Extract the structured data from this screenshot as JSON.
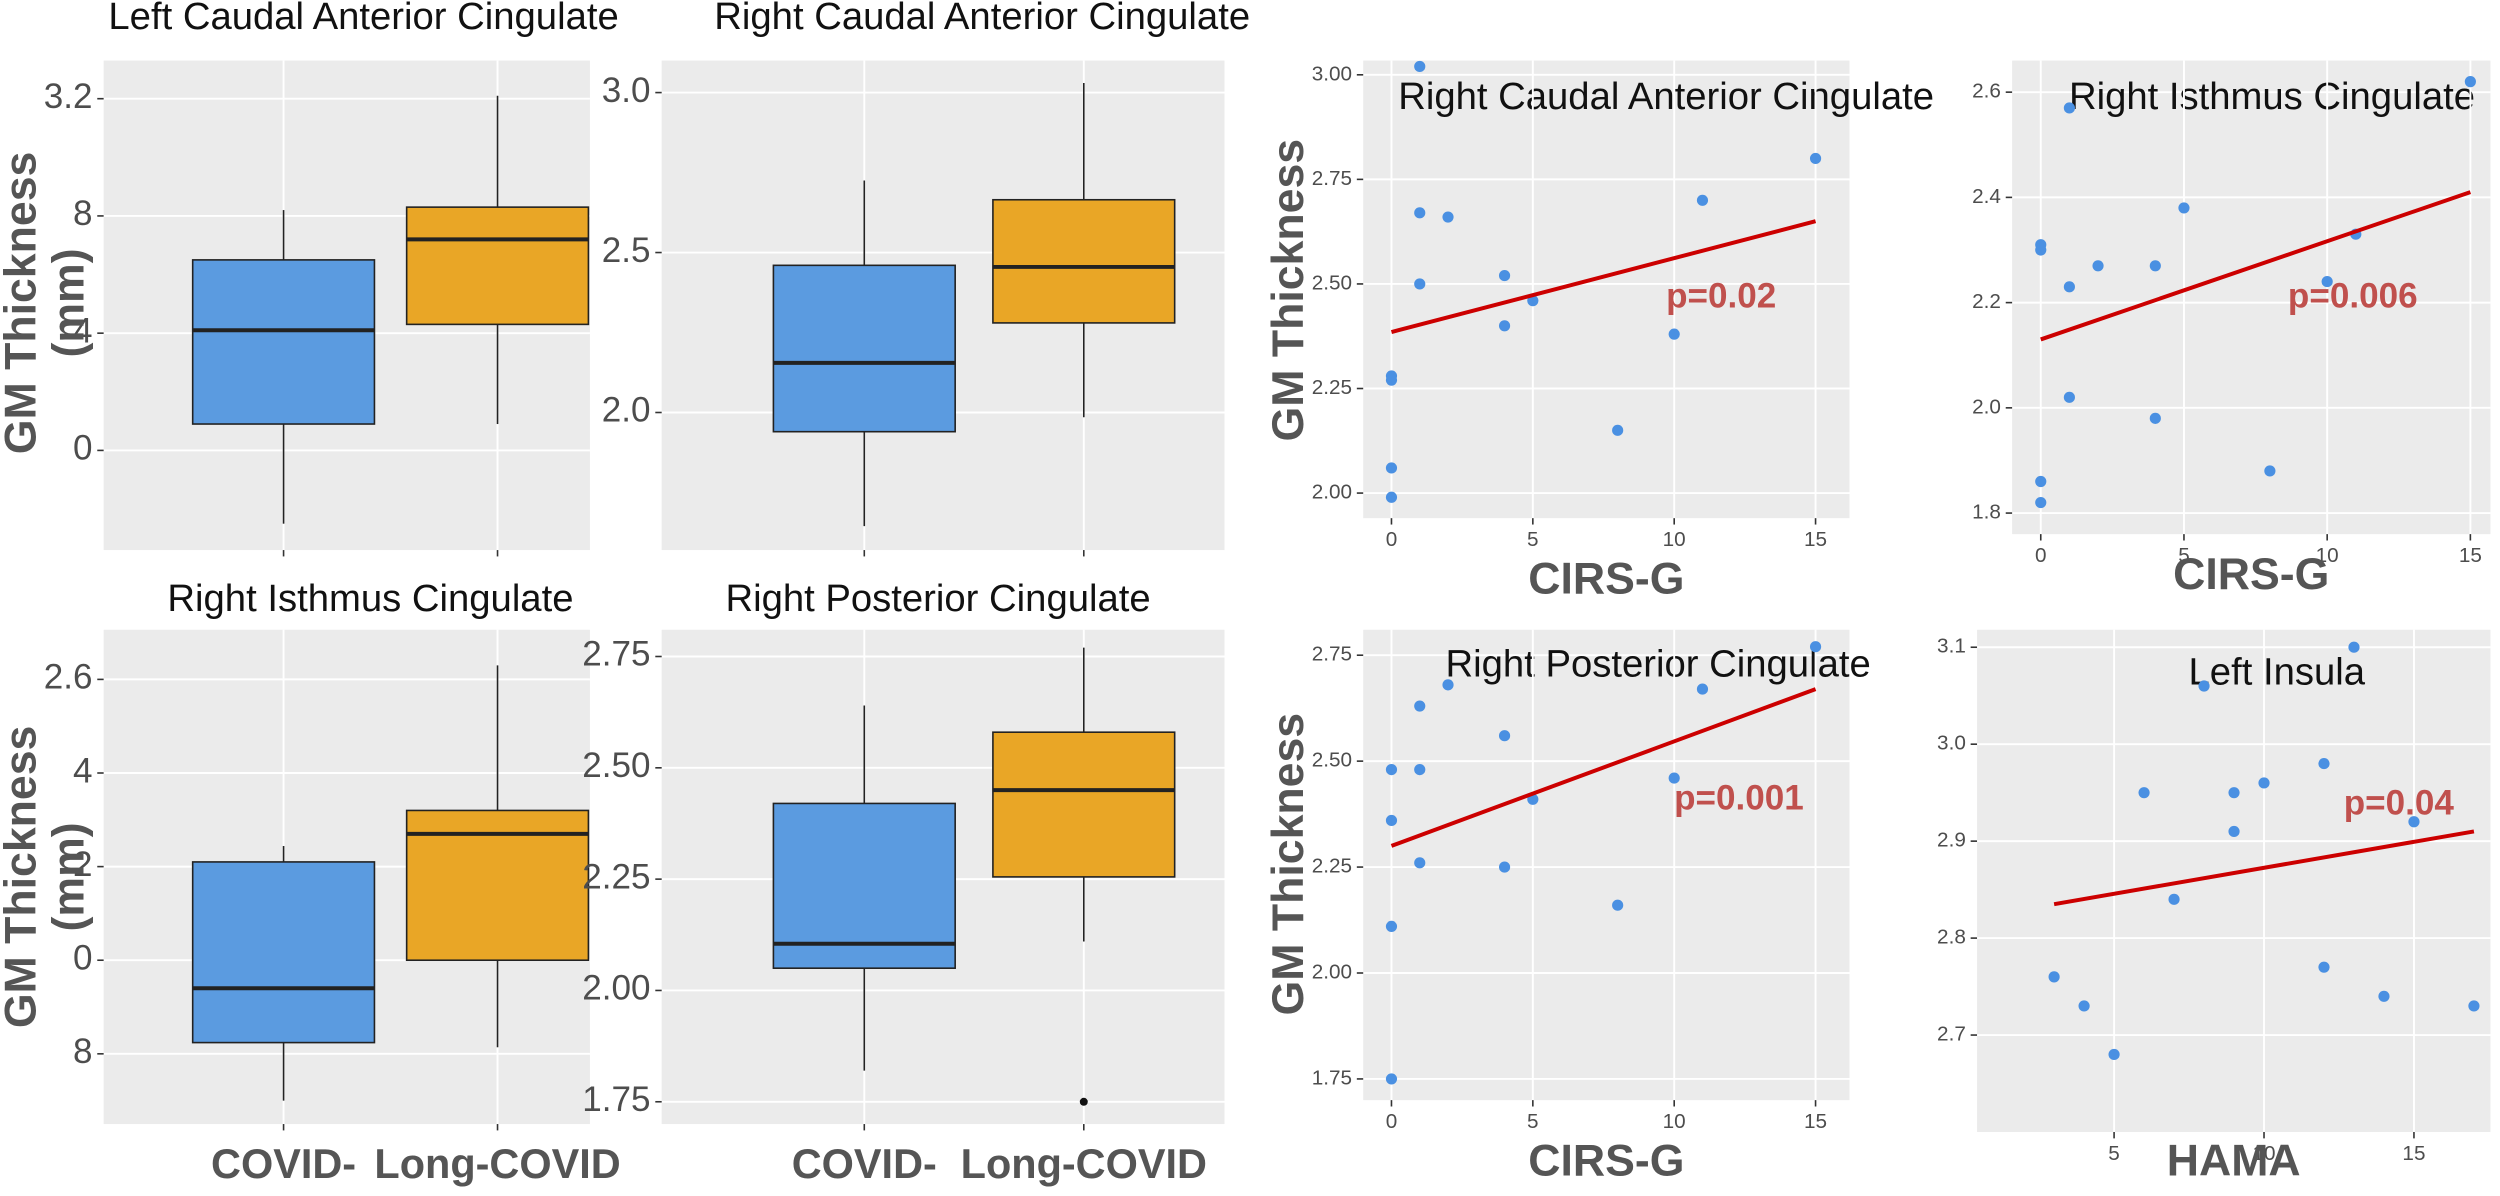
{
  "chart_data": [
    {
      "type": "box",
      "title": "Left Caudal Anterior Cingulate",
      "ylabel": [
        "GM Thickness",
        "(mm)"
      ],
      "categories": [
        null,
        null
      ],
      "colors": [
        "#5b9be0",
        "#e9a626"
      ],
      "boxes": [
        {
          "min": 1.75,
          "q1": 2.09,
          "median": 2.41,
          "q3": 2.65,
          "max": 2.82
        },
        {
          "min": 2.09,
          "q1": 2.43,
          "median": 2.72,
          "q3": 2.83,
          "max": 3.21
        }
      ],
      "outliers": [
        [],
        []
      ],
      "ylim": [
        1.66,
        3.33
      ],
      "yticks": [
        3.2,
        {
          "value": 2.8,
          "label": "8"
        },
        {
          "value": 2.4,
          "label": "4"
        },
        {
          "value": 2.0,
          "label": "0"
        }
      ]
    },
    {
      "type": "box",
      "title": "Right Caudal Anterior Cingulate",
      "categories": [
        null,
        null
      ],
      "colors": [
        "#5b9be0",
        "#e9a626"
      ],
      "boxes": [
        {
          "min": 1.645,
          "q1": 1.94,
          "median": 2.155,
          "q3": 2.46,
          "max": 2.725
        },
        {
          "min": 1.985,
          "q1": 2.28,
          "median": 2.455,
          "q3": 2.665,
          "max": 3.03
        }
      ],
      "outliers": [
        [],
        []
      ],
      "ylim": [
        1.57,
        3.1
      ],
      "yticks": [
        {
          "value": 3.0,
          "label": "3.0"
        },
        2.5,
        {
          "value": 2.0,
          "label": "2.0"
        }
      ]
    },
    {
      "type": "box",
      "title": "Right Isthmus Cingulate",
      "ylabel": [
        "GM Thickness",
        "(mm)"
      ],
      "categories": [
        "COVID-",
        "Long-COVID"
      ],
      "colors": [
        "#5b9be0",
        "#e9a626"
      ],
      "boxes": [
        {
          "min": 1.7,
          "q1": 1.824,
          "median": 1.94,
          "q3": 2.21,
          "max": 2.244
        },
        {
          "min": 1.814,
          "q1": 2.0,
          "median": 2.27,
          "q3": 2.32,
          "max": 2.63
        }
      ],
      "outliers": [
        [],
        []
      ],
      "ylim": [
        1.65,
        2.706
      ],
      "yticks": [
        2.6,
        {
          "value": 2.4,
          "label": "4"
        },
        {
          "value": 2.2,
          "label": "2"
        },
        {
          "value": 2.0,
          "label": "0"
        },
        {
          "value": 1.8,
          "label": "8"
        }
      ]
    },
    {
      "type": "box",
      "title": "Right Posterior Cingulate",
      "categories": [
        "COVID-",
        "Long-COVID"
      ],
      "colors": [
        "#5b9be0",
        "#e9a626"
      ],
      "boxes": [
        {
          "min": 1.82,
          "q1": 2.05,
          "median": 2.105,
          "q3": 2.42,
          "max": 2.64
        },
        {
          "min": 2.11,
          "q1": 2.255,
          "median": 2.45,
          "q3": 2.58,
          "max": 2.77
        }
      ],
      "outliers": [
        [],
        [
          1.75
        ]
      ],
      "ylim": [
        1.7,
        2.81
      ],
      "yticks": [
        2.75,
        {
          "value": 2.5,
          "label": "2.50"
        },
        2.25,
        {
          "value": 2.0,
          "label": "2.00"
        },
        1.75
      ]
    },
    {
      "type": "scatter",
      "title": "Right Caudal Anterior Cingulate",
      "xlabel": "CIRS-G",
      "ylabel": [
        "GM Thickness"
      ],
      "annotation": "p=0.02",
      "color": "#4a90e2",
      "line_color": "#cc0000",
      "x": [
        1,
        1,
        2,
        1,
        4,
        4,
        5,
        0,
        0,
        0,
        0,
        8,
        10,
        11,
        15
      ],
      "y": [
        3.02,
        2.67,
        2.66,
        2.5,
        2.52,
        2.4,
        2.46,
        2.28,
        2.27,
        2.06,
        1.99,
        2.15,
        2.38,
        2.7,
        2.8
      ],
      "line": {
        "x": [
          0,
          15
        ],
        "y": [
          2.385,
          2.65
        ]
      },
      "xlim": [
        -1.0,
        16.2
      ],
      "xticks": [
        0,
        5,
        10,
        15
      ],
      "ylim": [
        1.94,
        3.034
      ],
      "yticks": [
        {
          "value": 3.0,
          "label": "3.00"
        },
        2.75,
        {
          "value": 2.5,
          "label": "2.50"
        },
        2.25,
        {
          "value": 2.0,
          "label": "2.00"
        }
      ]
    },
    {
      "type": "scatter",
      "title": "Right Isthmus Cingulate",
      "xlabel": "CIRS-G",
      "annotation": "p=0.006",
      "color": "#4a90e2",
      "line_color": "#cc0000",
      "x": [
        0,
        0,
        1,
        1,
        2,
        4,
        5,
        1,
        4,
        0,
        0,
        8,
        10,
        11,
        15
      ],
      "y": [
        2.31,
        2.3,
        2.57,
        2.23,
        2.27,
        2.27,
        2.38,
        2.02,
        1.98,
        1.86,
        1.82,
        1.88,
        2.24,
        2.33,
        2.62
      ],
      "line": {
        "x": [
          0,
          15
        ],
        "y": [
          2.13,
          2.41
        ]
      },
      "xlim": [
        -1.0,
        15.7
      ],
      "xticks": [
        0,
        5,
        10,
        15
      ],
      "ylim": [
        1.76,
        2.66
      ],
      "yticks": [
        2.6,
        2.4,
        2.2,
        {
          "value": 2.0,
          "label": "2.0"
        },
        1.8
      ]
    },
    {
      "type": "scatter",
      "title": "Right Posterior Cingulate",
      "xlabel": "CIRS-G",
      "ylabel": [
        "GM Thickness"
      ],
      "annotation": "p=0.001",
      "color": "#4a90e2",
      "line_color": "#cc0000",
      "x": [
        15,
        0,
        1,
        2,
        1,
        0,
        1,
        0,
        4,
        4,
        5,
        8,
        10,
        11,
        0
      ],
      "y": [
        2.77,
        2.48,
        2.63,
        2.68,
        2.48,
        2.36,
        2.26,
        2.11,
        2.56,
        2.25,
        2.41,
        2.16,
        2.46,
        2.67,
        1.75
      ],
      "line": {
        "x": [
          0,
          15
        ],
        "y": [
          2.3,
          2.67
        ]
      },
      "xlim": [
        -1.0,
        16.2
      ],
      "xticks": [
        0,
        5,
        10,
        15
      ],
      "ylim": [
        1.7,
        2.81
      ],
      "yticks": [
        2.75,
        {
          "value": 2.5,
          "label": "2.50"
        },
        2.25,
        {
          "value": 2.0,
          "label": "2.00"
        },
        1.75
      ]
    },
    {
      "type": "scatter",
      "title": "Left Insula",
      "xlabel": "HAMA",
      "annotation": "p=0.04",
      "color": "#4a90e2",
      "line_color": "#cc0000",
      "x": [
        13,
        8,
        6,
        9,
        10,
        12,
        9,
        15,
        7,
        3,
        4,
        5,
        12,
        14,
        17
      ],
      "y": [
        3.1,
        3.06,
        2.95,
        2.95,
        2.96,
        2.98,
        2.91,
        2.92,
        2.84,
        2.76,
        2.73,
        2.68,
        2.77,
        2.74,
        2.73
      ],
      "line": {
        "x": [
          3,
          17
        ],
        "y": [
          2.835,
          2.91
        ]
      },
      "xlim": [
        0.43,
        17.55
      ],
      "xticks": [
        5,
        10,
        15
      ],
      "ylim": [
        2.6,
        3.118
      ],
      "yticks": [
        3.1,
        {
          "value": 3.0,
          "label": "3.0"
        },
        2.9,
        2.8,
        2.7
      ]
    }
  ]
}
